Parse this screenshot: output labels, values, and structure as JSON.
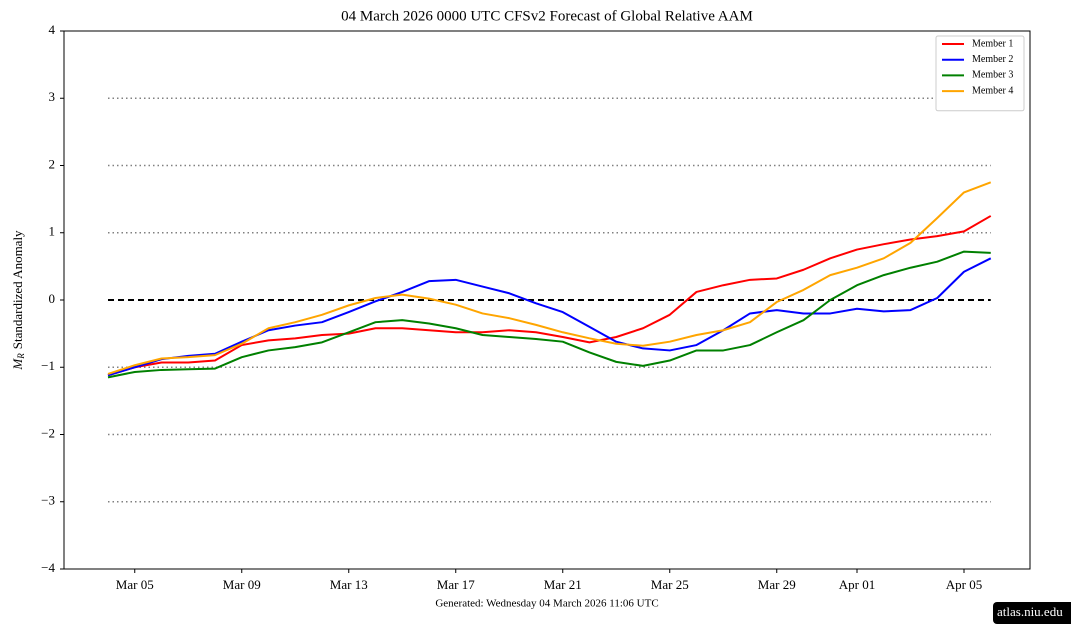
{
  "chart_data": {
    "type": "line",
    "title": "04  March  2026 0000 UTC   CFSv2 Forecast of Global Relative AAM",
    "y_label_symbol": "M",
    "y_label_subscript": "R",
    "y_label": "Standardized Anomaly",
    "footer": "Generated: Wednesday  04  March  2026  11:06 UTC",
    "watermark": "atlas.niu.edu",
    "x": [
      "Mar 04",
      "Mar 05",
      "Mar 06",
      "Mar 07",
      "Mar 08",
      "Mar 09",
      "Mar 10",
      "Mar 11",
      "Mar 12",
      "Mar 13",
      "Mar 14",
      "Mar 15",
      "Mar 16",
      "Mar 17",
      "Mar 18",
      "Mar 19",
      "Mar 20",
      "Mar 21",
      "Mar 22",
      "Mar 23",
      "Mar 24",
      "Mar 25",
      "Mar 26",
      "Mar 27",
      "Mar 28",
      "Mar 29",
      "Mar 30",
      "Mar 31",
      "Apr 01",
      "Apr 02",
      "Apr 03",
      "Apr 04",
      "Apr 05",
      "Apr 06"
    ],
    "xticks": [
      "Mar 05",
      "Mar 09",
      "Mar 13",
      "Mar 17",
      "Mar 21",
      "Mar 25",
      "Mar 29",
      "Apr 01",
      "Apr 05"
    ],
    "ylim": [
      -4,
      4
    ],
    "yticks": [
      {
        "value": -4,
        "label": "−4"
      },
      {
        "value": -3,
        "label": "−3"
      },
      {
        "value": -2,
        "label": "−2"
      },
      {
        "value": -1,
        "label": "−1"
      },
      0,
      1,
      2,
      3,
      4
    ],
    "grid": true,
    "zero_line": true,
    "legend": "upper right",
    "series": [
      {
        "name": "Member 1",
        "color": "#ff0000",
        "values": [
          -1.12,
          -1.0,
          -0.93,
          -0.93,
          -0.9,
          -0.67,
          -0.6,
          -0.57,
          -0.52,
          -0.5,
          -0.42,
          -0.42,
          -0.45,
          -0.48,
          -0.48,
          -0.45,
          -0.48,
          -0.55,
          -0.63,
          -0.55,
          -0.42,
          -0.22,
          0.12,
          0.22,
          0.3,
          0.32,
          0.45,
          0.62,
          0.75,
          0.83,
          0.9,
          0.95,
          1.02,
          1.25
        ]
      },
      {
        "name": "Member 2",
        "color": "#0000ff",
        "values": [
          -1.12,
          -1.0,
          -0.88,
          -0.83,
          -0.8,
          -0.62,
          -0.45,
          -0.38,
          -0.33,
          -0.18,
          -0.02,
          0.12,
          0.28,
          0.3,
          0.2,
          0.1,
          -0.05,
          -0.18,
          -0.4,
          -0.62,
          -0.72,
          -0.75,
          -0.67,
          -0.45,
          -0.2,
          -0.15,
          -0.2,
          -0.2,
          -0.13,
          -0.17,
          -0.15,
          0.03,
          0.42,
          0.62
        ]
      },
      {
        "name": "Member 3",
        "color": "#008000",
        "values": [
          -1.15,
          -1.07,
          -1.04,
          -1.03,
          -1.02,
          -0.85,
          -0.75,
          -0.7,
          -0.63,
          -0.48,
          -0.33,
          -0.3,
          -0.35,
          -0.42,
          -0.52,
          -0.55,
          -0.58,
          -0.62,
          -0.78,
          -0.92,
          -0.98,
          -0.9,
          -0.75,
          -0.75,
          -0.67,
          -0.48,
          -0.3,
          0,
          0.22,
          0.37,
          0.48,
          0.57,
          0.72,
          0.7
        ]
      },
      {
        "name": "Member 4",
        "color": "#ffa500",
        "values": [
          -1.1,
          -0.97,
          -0.87,
          -0.85,
          -0.82,
          -0.65,
          -0.42,
          -0.33,
          -0.22,
          -0.08,
          0.03,
          0.08,
          0.02,
          -0.07,
          -0.2,
          -0.27,
          -0.37,
          -0.48,
          -0.57,
          -0.65,
          -0.68,
          -0.62,
          -0.52,
          -0.45,
          -0.33,
          -0.03,
          0.15,
          0.37,
          0.48,
          0.62,
          0.85,
          1.22,
          1.6,
          1.75
        ]
      }
    ]
  }
}
